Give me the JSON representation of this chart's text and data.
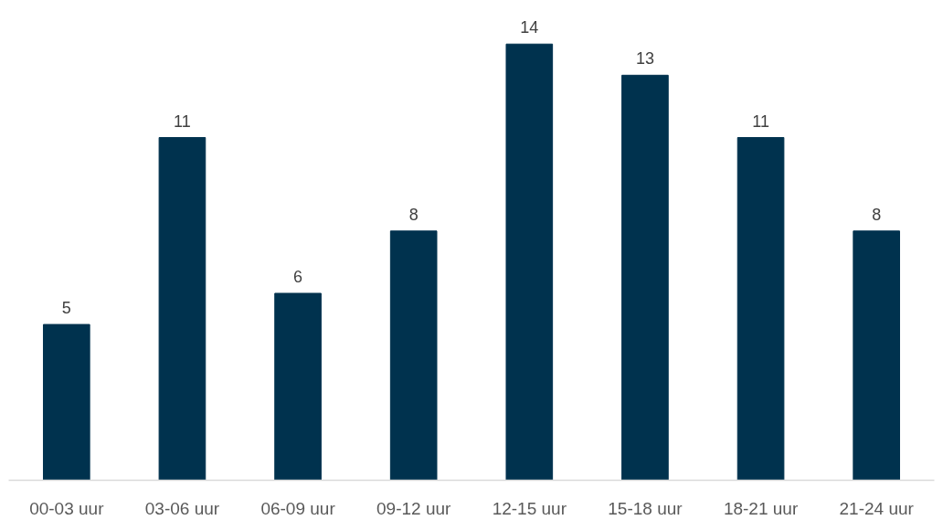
{
  "chart_data": {
    "type": "bar",
    "categories": [
      "00-03 uur",
      "03-06 uur",
      "06-09 uur",
      "09-12 uur",
      "12-15 uur",
      "15-18 uur",
      "18-21 uur",
      "21-24 uur"
    ],
    "values": [
      5,
      11,
      6,
      8,
      14,
      13,
      11,
      8
    ],
    "color": "#00324e",
    "data_labels": true
  }
}
